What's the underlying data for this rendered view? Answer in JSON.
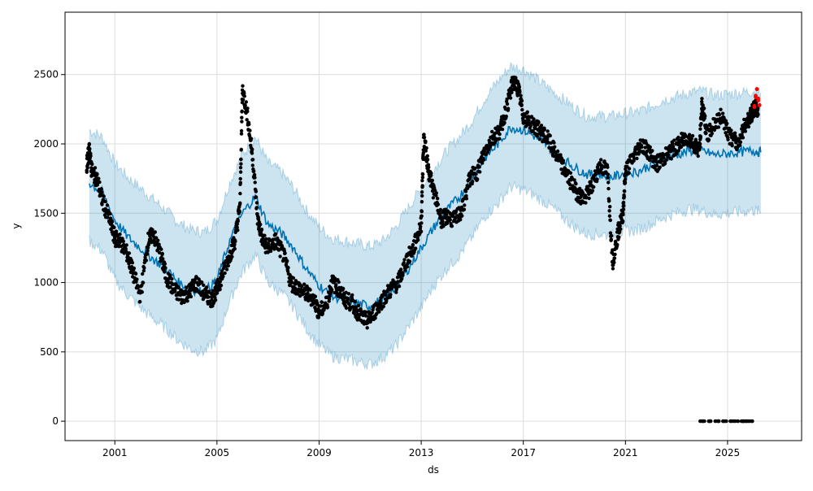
{
  "chart_data": {
    "type": "line",
    "xlabel": "ds",
    "ylabel": "y",
    "xlim": [
      1999.05,
      2027.9
    ],
    "ylim": [
      -140,
      2950
    ],
    "x_ticks": [
      {
        "value": 2001,
        "label": "2001"
      },
      {
        "value": 2005,
        "label": "2005"
      },
      {
        "value": 2009,
        "label": "2009"
      },
      {
        "value": 2013,
        "label": "2013"
      },
      {
        "value": 2017,
        "label": "2017"
      },
      {
        "value": 2021,
        "label": "2021"
      },
      {
        "value": 2025,
        "label": "2025"
      }
    ],
    "y_ticks": [
      {
        "value": 0,
        "label": "0"
      },
      {
        "value": 500,
        "label": "500"
      },
      {
        "value": 1000,
        "label": "1000"
      },
      {
        "value": 1500,
        "label": "1500"
      },
      {
        "value": 2000,
        "label": "2000"
      },
      {
        "value": 2500,
        "label": "2500"
      }
    ],
    "grid": true,
    "colors": {
      "forecast_line": "#0072B2",
      "interval_fill": "#0072B2",
      "observed_points": "#000000",
      "recent_points": "#ff0000"
    },
    "series": [
      {
        "kind": "forecast",
        "x": [
          2000.0,
          2000.5,
          2001.0,
          2001.5,
          2002.0,
          2002.5,
          2003.0,
          2003.5,
          2004.0,
          2004.5,
          2005.0,
          2005.5,
          2006.0,
          2006.5,
          2007.0,
          2007.5,
          2008.0,
          2008.5,
          2009.0,
          2009.5,
          2010.0,
          2010.5,
          2011.0,
          2011.5,
          2012.0,
          2012.5,
          2013.0,
          2013.5,
          2014.0,
          2014.5,
          2015.0,
          2015.5,
          2016.0,
          2016.5,
          2017.0,
          2017.5,
          2018.0,
          2018.5,
          2019.0,
          2019.5,
          2020.0,
          2020.5,
          2021.0,
          2021.5,
          2022.0,
          2022.5,
          2023.0,
          2023.5,
          2024.0,
          2024.5,
          2025.0,
          2025.5,
          2026.0,
          2026.3
        ],
        "y": [
          1720,
          1650,
          1450,
          1330,
          1250,
          1170,
          1100,
          1000,
          950,
          930,
          1020,
          1300,
          1500,
          1620,
          1420,
          1360,
          1250,
          1100,
          980,
          900,
          880,
          850,
          830,
          880,
          960,
          1100,
          1250,
          1400,
          1520,
          1620,
          1750,
          1900,
          2000,
          2120,
          2100,
          2050,
          1980,
          1900,
          1830,
          1780,
          1780,
          1760,
          1790,
          1800,
          1850,
          1900,
          1920,
          1950,
          1950,
          1920,
          1930,
          1940,
          1950,
          1940
        ]
      },
      {
        "kind": "uncertainty_upper",
        "x": [
          2000.0,
          2000.5,
          2001.0,
          2001.5,
          2002.0,
          2002.5,
          2003.0,
          2003.5,
          2004.0,
          2004.5,
          2005.0,
          2005.5,
          2006.0,
          2006.5,
          2007.0,
          2007.5,
          2008.0,
          2008.5,
          2009.0,
          2009.5,
          2010.0,
          2010.5,
          2011.0,
          2011.5,
          2012.0,
          2012.5,
          2013.0,
          2013.5,
          2014.0,
          2014.5,
          2015.0,
          2015.5,
          2016.0,
          2016.5,
          2017.0,
          2017.5,
          2018.0,
          2018.5,
          2019.0,
          2019.5,
          2020.0,
          2020.5,
          2021.0,
          2021.5,
          2022.0,
          2022.5,
          2023.0,
          2023.5,
          2024.0,
          2024.5,
          2025.0,
          2025.5,
          2026.0,
          2026.3
        ],
        "y": [
          2100,
          2050,
          1860,
          1760,
          1680,
          1600,
          1520,
          1430,
          1380,
          1360,
          1450,
          1720,
          1920,
          2050,
          1860,
          1800,
          1680,
          1520,
          1400,
          1320,
          1300,
          1280,
          1260,
          1300,
          1400,
          1540,
          1680,
          1820,
          1950,
          2050,
          2170,
          2330,
          2450,
          2560,
          2540,
          2470,
          2400,
          2330,
          2260,
          2200,
          2200,
          2200,
          2220,
          2230,
          2270,
          2320,
          2340,
          2370,
          2380,
          2350,
          2360,
          2370,
          2380,
          2370
        ]
      },
      {
        "kind": "uncertainty_lower",
        "x": [
          2000.0,
          2000.5,
          2001.0,
          2001.5,
          2002.0,
          2002.5,
          2003.0,
          2003.5,
          2004.0,
          2004.5,
          2005.0,
          2005.5,
          2006.0,
          2006.5,
          2007.0,
          2007.5,
          2008.0,
          2008.5,
          2009.0,
          2009.5,
          2010.0,
          2010.5,
          2011.0,
          2011.5,
          2012.0,
          2012.5,
          2013.0,
          2013.5,
          2014.0,
          2014.5,
          2015.0,
          2015.5,
          2016.0,
          2016.5,
          2017.0,
          2017.5,
          2018.0,
          2018.5,
          2019.0,
          2019.5,
          2020.0,
          2020.5,
          2021.0,
          2021.5,
          2022.0,
          2022.5,
          2023.0,
          2023.5,
          2024.0,
          2024.5,
          2025.0,
          2025.5,
          2026.0,
          2026.3
        ],
        "y": [
          1300,
          1230,
          1020,
          910,
          820,
          740,
          670,
          580,
          520,
          500,
          590,
          870,
          1080,
          1200,
          1000,
          930,
          820,
          670,
          550,
          470,
          450,
          430,
          410,
          460,
          540,
          680,
          820,
          980,
          1100,
          1200,
          1330,
          1480,
          1570,
          1690,
          1670,
          1620,
          1560,
          1480,
          1400,
          1350,
          1350,
          1340,
          1370,
          1380,
          1420,
          1470,
          1500,
          1530,
          1520,
          1490,
          1500,
          1510,
          1520,
          1510
        ]
      },
      {
        "kind": "observed",
        "x": [
          1999.9,
          2000.0,
          2000.1,
          2000.3,
          2000.5,
          2000.8,
          2001.0,
          2001.2,
          2001.5,
          2001.7,
          2002.0,
          2002.3,
          2002.5,
          2002.8,
          2003.0,
          2003.3,
          2003.6,
          2003.9,
          2004.2,
          2004.5,
          2004.8,
          2005.0,
          2005.2,
          2005.5,
          2005.7,
          2005.9,
          2006.0,
          2006.2,
          2006.4,
          2006.6,
          2006.8,
          2007.0,
          2007.3,
          2007.6,
          2007.9,
          2008.2,
          2008.5,
          2008.8,
          2009.0,
          2009.3,
          2009.5,
          2009.8,
          2010.0,
          2010.3,
          2010.6,
          2010.9,
          2011.2,
          2011.5,
          2011.8,
          2012.1,
          2012.4,
          2012.7,
          2013.0,
          2013.1,
          2013.3,
          2013.5,
          2013.8,
          2014.0,
          2014.3,
          2014.6,
          2014.9,
          2015.2,
          2015.5,
          2015.8,
          2016.1,
          2016.4,
          2016.6,
          2016.8,
          2017.0,
          2017.3,
          2017.6,
          2017.9,
          2018.2,
          2018.5,
          2018.8,
          2019.1,
          2019.4,
          2019.7,
          2020.0,
          2020.3,
          2020.5,
          2020.7,
          2020.9,
          2021.0,
          2021.3,
          2021.6,
          2021.9,
          2022.2,
          2022.5,
          2022.8,
          2023.1,
          2023.4,
          2023.7,
          2023.9,
          2024.0,
          2024.2,
          2024.5,
          2024.8,
          2025.1,
          2025.4,
          2025.7,
          2025.9,
          2026.0,
          2026.1
        ],
        "y": [
          1850,
          1950,
          1800,
          1750,
          1600,
          1450,
          1320,
          1300,
          1200,
          1080,
          900,
          1300,
          1350,
          1200,
          1050,
          950,
          900,
          930,
          1000,
          920,
          880,
          950,
          1050,
          1200,
          1300,
          1550,
          2400,
          2200,
          1900,
          1450,
          1300,
          1250,
          1300,
          1200,
          1000,
          960,
          920,
          880,
          780,
          850,
          1000,
          950,
          880,
          850,
          760,
          720,
          800,
          880,
          950,
          1000,
          1150,
          1250,
          1420,
          2050,
          1800,
          1650,
          1450,
          1480,
          1450,
          1520,
          1750,
          1800,
          1950,
          2050,
          2100,
          2300,
          2450,
          2400,
          2200,
          2150,
          2100,
          2050,
          1950,
          1850,
          1750,
          1650,
          1600,
          1700,
          1850,
          1800,
          1150,
          1350,
          1500,
          1800,
          1900,
          2000,
          1950,
          1850,
          1900,
          1950,
          2000,
          2050,
          2000,
          1950,
          2300,
          2050,
          2150,
          2200,
          2050,
          2000,
          2150,
          2200,
          2250,
          2260
        ]
      },
      {
        "kind": "observed_zero",
        "x": [
          2024.0,
          2024.3,
          2024.6,
          2024.9,
          2025.2,
          2025.5,
          2025.7,
          2025.9
        ],
        "y": [
          0,
          0,
          0,
          0,
          0,
          0,
          0,
          0
        ]
      },
      {
        "kind": "recent",
        "x": [
          2026.05,
          2026.1,
          2026.15,
          2026.2,
          2026.25
        ],
        "y": [
          2280,
          2350,
          2390,
          2330,
          2290
        ]
      }
    ]
  }
}
